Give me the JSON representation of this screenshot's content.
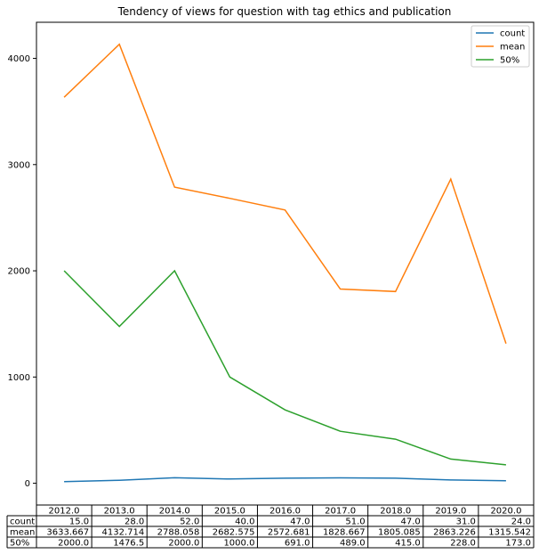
{
  "chart_data": {
    "type": "line",
    "title": "Tendency of views for question with tag ethics and publication",
    "x": [
      "2012.0",
      "2013.0",
      "2014.0",
      "2015.0",
      "2016.0",
      "2017.0",
      "2018.0",
      "2019.0",
      "2020.0"
    ],
    "series": [
      {
        "name": "count",
        "color": "#1f77b4",
        "values": [
          15.0,
          28.0,
          52.0,
          40.0,
          47.0,
          51.0,
          47.0,
          31.0,
          24.0
        ],
        "labels": [
          "15.0",
          "28.0",
          "52.0",
          "40.0",
          "47.0",
          "51.0",
          "47.0",
          "31.0",
          "24.0"
        ]
      },
      {
        "name": "mean",
        "color": "#ff7f0e",
        "values": [
          3633.667,
          4132.714,
          2788.058,
          2682.575,
          2572.681,
          1828.667,
          1805.085,
          2863.226,
          1315.542
        ],
        "labels": [
          "3633.667",
          "4132.714",
          "2788.058",
          "2682.575",
          "2572.681",
          "1828.667",
          "1805.085",
          "2863.226",
          "1315.542"
        ]
      },
      {
        "name": "50%",
        "color": "#2ca02c",
        "values": [
          2000.0,
          1476.5,
          2000.0,
          1000.0,
          691.0,
          489.0,
          415.0,
          228.0,
          173.0
        ],
        "labels": [
          "2000.0",
          "1476.5",
          "2000.0",
          "1000.0",
          "691.0",
          "489.0",
          "415.0",
          "228.0",
          "173.0"
        ]
      }
    ],
    "yticks": [
      0,
      1000,
      2000,
      3000,
      4000
    ],
    "ylim": [
      -205,
      4340
    ],
    "legend_position": "top-right",
    "grid": false
  }
}
